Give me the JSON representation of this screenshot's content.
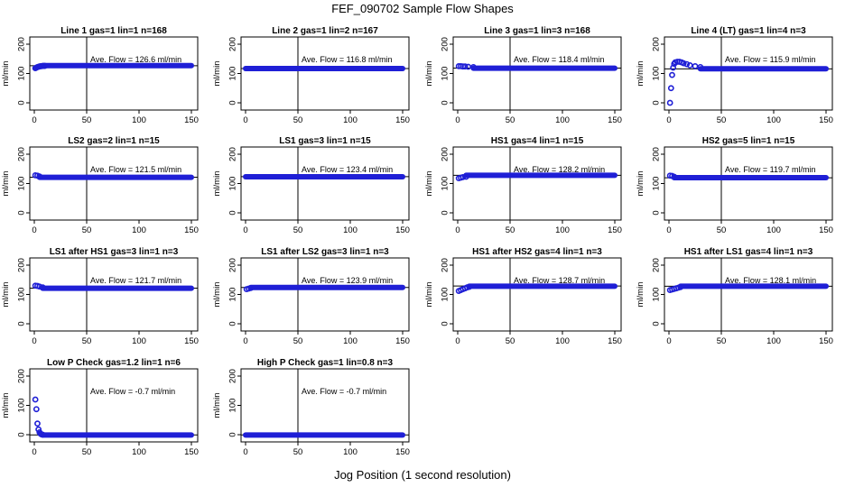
{
  "title": "FEF_090702  Sample Flow Shapes",
  "xlabel": "Jog Position (1 second resolution)",
  "chart_data": [
    {
      "type": "scatter",
      "title": "Line 1 gas=1 lin=1 n=168",
      "ylabel": "ml/min",
      "xlim": [
        0,
        150
      ],
      "ylim": [
        0,
        200
      ],
      "xticks": [
        0,
        50,
        100,
        150
      ],
      "yticks": [
        0,
        100,
        200
      ],
      "vline_x": 50,
      "avg": 126.6,
      "avg_label": "Ave. Flow =  126.6  ml/min",
      "points": [
        [
          1,
          118
        ],
        [
          2,
          120
        ],
        [
          3,
          122
        ],
        [
          4,
          123
        ],
        [
          5,
          124
        ],
        [
          6,
          125
        ],
        [
          7,
          125
        ],
        [
          8,
          126
        ],
        [
          9,
          126
        ],
        [
          10,
          126
        ]
      ],
      "fill_to": 150,
      "fill_y": 127
    },
    {
      "type": "scatter",
      "title": "Line 2 gas=1 lin=2 n=167",
      "ylabel": "ml/min",
      "xlim": [
        0,
        150
      ],
      "ylim": [
        0,
        200
      ],
      "xticks": [
        0,
        50,
        100,
        150
      ],
      "yticks": [
        0,
        100,
        200
      ],
      "vline_x": 50,
      "avg": 116.8,
      "avg_label": "Ave. Flow =  116.8  ml/min",
      "points": [],
      "fill_to": 150,
      "fill_y": 117
    },
    {
      "type": "scatter",
      "title": "Line 3 gas=1 lin=3 n=168",
      "ylabel": "ml/min",
      "xlim": [
        0,
        150
      ],
      "ylim": [
        0,
        200
      ],
      "xticks": [
        0,
        50,
        100,
        150
      ],
      "yticks": [
        0,
        100,
        200
      ],
      "vline_x": 50,
      "avg": 118.4,
      "avg_label": "Ave. Flow =  118.4  ml/min",
      "points": [
        [
          1,
          125
        ],
        [
          3,
          125
        ],
        [
          5,
          124
        ],
        [
          7,
          124
        ],
        [
          10,
          123
        ],
        [
          15,
          122
        ]
      ],
      "fill_to": 150,
      "fill_y": 118
    },
    {
      "type": "scatter",
      "title": "Line 4 (LT) gas=1 lin=4 n=3",
      "ylabel": "ml/min",
      "xlim": [
        0,
        150
      ],
      "ylim": [
        0,
        200
      ],
      "xticks": [
        0,
        50,
        100,
        150
      ],
      "yticks": [
        0,
        100,
        200
      ],
      "vline_x": 50,
      "avg": 115.9,
      "avg_label": "Ave. Flow =  115.9  ml/min",
      "points": [
        [
          1,
          0
        ],
        [
          2,
          50
        ],
        [
          3,
          95
        ],
        [
          4,
          120
        ],
        [
          5,
          133
        ],
        [
          6,
          138
        ],
        [
          8,
          140
        ],
        [
          10,
          140
        ],
        [
          12,
          138
        ],
        [
          14,
          135
        ],
        [
          17,
          132
        ],
        [
          20,
          128
        ],
        [
          25,
          125
        ],
        [
          30,
          122
        ]
      ],
      "fill_to": 150,
      "fill_y": 116
    },
    {
      "type": "scatter",
      "title": "LS2 gas=2 lin=1 n=15",
      "ylabel": "ml/min",
      "xlim": [
        0,
        150
      ],
      "ylim": [
        0,
        200
      ],
      "xticks": [
        0,
        50,
        100,
        150
      ],
      "yticks": [
        0,
        100,
        200
      ],
      "vline_x": 50,
      "avg": 121.5,
      "avg_label": "Ave. Flow =  121.5  ml/min",
      "points": [
        [
          1,
          128
        ],
        [
          3,
          127
        ],
        [
          5,
          124
        ]
      ],
      "fill_to": 150,
      "fill_y": 121
    },
    {
      "type": "scatter",
      "title": "LS1 gas=3 lin=1 n=15",
      "ylabel": "ml/min",
      "xlim": [
        0,
        150
      ],
      "ylim": [
        0,
        200
      ],
      "xticks": [
        0,
        50,
        100,
        150
      ],
      "yticks": [
        0,
        100,
        200
      ],
      "vline_x": 50,
      "avg": 123.4,
      "avg_label": "Ave. Flow =  123.4  ml/min",
      "points": [],
      "fill_to": 150,
      "fill_y": 123
    },
    {
      "type": "scatter",
      "title": "HS1 gas=4 lin=1 n=15",
      "ylabel": "ml/min",
      "xlim": [
        0,
        150
      ],
      "ylim": [
        0,
        200
      ],
      "xticks": [
        0,
        50,
        100,
        150
      ],
      "yticks": [
        0,
        100,
        200
      ],
      "vline_x": 50,
      "avg": 128.2,
      "avg_label": "Ave. Flow =  128.2  ml/min",
      "points": [
        [
          1,
          118
        ],
        [
          3,
          120
        ],
        [
          5,
          122
        ],
        [
          8,
          123
        ]
      ],
      "fill_to": 150,
      "fill_y": 128
    },
    {
      "type": "scatter",
      "title": "HS2 gas=5 lin=1 n=15",
      "ylabel": "ml/min",
      "xlim": [
        0,
        150
      ],
      "ylim": [
        0,
        200
      ],
      "xticks": [
        0,
        50,
        100,
        150
      ],
      "yticks": [
        0,
        100,
        200
      ],
      "vline_x": 50,
      "avg": 119.7,
      "avg_label": "Ave. Flow =  119.7  ml/min",
      "points": [
        [
          1,
          127
        ],
        [
          3,
          126
        ],
        [
          5,
          123
        ]
      ],
      "fill_to": 150,
      "fill_y": 120
    },
    {
      "type": "scatter",
      "title": "LS1 after HS1 gas=3 lin=1 n=3",
      "ylabel": "ml/min",
      "xlim": [
        0,
        150
      ],
      "ylim": [
        0,
        200
      ],
      "xticks": [
        0,
        50,
        100,
        150
      ],
      "yticks": [
        0,
        100,
        200
      ],
      "vline_x": 50,
      "avg": 121.7,
      "avg_label": "Ave. Flow =  121.7  ml/min",
      "points": [
        [
          1,
          130
        ],
        [
          3,
          129
        ],
        [
          5,
          127
        ],
        [
          8,
          124
        ]
      ],
      "fill_to": 150,
      "fill_y": 121
    },
    {
      "type": "scatter",
      "title": "LS1 after LS2 gas=3 lin=1 n=3",
      "ylabel": "ml/min",
      "xlim": [
        0,
        150
      ],
      "ylim": [
        0,
        200
      ],
      "xticks": [
        0,
        50,
        100,
        150
      ],
      "yticks": [
        0,
        100,
        200
      ],
      "vline_x": 50,
      "avg": 123.9,
      "avg_label": "Ave. Flow =  123.9  ml/min",
      "points": [
        [
          1,
          118
        ],
        [
          3,
          120
        ],
        [
          5,
          122
        ]
      ],
      "fill_to": 150,
      "fill_y": 124
    },
    {
      "type": "scatter",
      "title": "HS1 after HS2 gas=4 lin=1 n=3",
      "ylabel": "ml/min",
      "xlim": [
        0,
        150
      ],
      "ylim": [
        0,
        200
      ],
      "xticks": [
        0,
        50,
        100,
        150
      ],
      "yticks": [
        0,
        100,
        200
      ],
      "vline_x": 50,
      "avg": 128.7,
      "avg_label": "Ave. Flow =  128.7  ml/min",
      "points": [
        [
          1,
          112
        ],
        [
          3,
          115
        ],
        [
          5,
          118
        ],
        [
          7,
          121
        ],
        [
          9,
          124
        ],
        [
          11,
          126
        ]
      ],
      "fill_to": 150,
      "fill_y": 128
    },
    {
      "type": "scatter",
      "title": "HS1 after LS1 gas=4 lin=1 n=3",
      "ylabel": "ml/min",
      "xlim": [
        0,
        150
      ],
      "ylim": [
        0,
        200
      ],
      "xticks": [
        0,
        50,
        100,
        150
      ],
      "yticks": [
        0,
        100,
        200
      ],
      "vline_x": 50,
      "avg": 128.1,
      "avg_label": "Ave. Flow =  128.1  ml/min",
      "points": [
        [
          1,
          115
        ],
        [
          3,
          117
        ],
        [
          5,
          119
        ],
        [
          7,
          121
        ],
        [
          9,
          123
        ],
        [
          11,
          125
        ]
      ],
      "fill_to": 150,
      "fill_y": 128
    },
    {
      "type": "scatter",
      "title": "Low P Check gas=1.2 lin=1 n=6",
      "ylabel": "ml/min",
      "xlim": [
        0,
        150
      ],
      "ylim": [
        0,
        200
      ],
      "xticks": [
        0,
        50,
        100,
        150
      ],
      "yticks": [
        0,
        100,
        200
      ],
      "vline_x": 50,
      "avg": -0.7,
      "avg_label": "Ave. Flow =  -0.7  ml/min",
      "points": [
        [
          1,
          120
        ],
        [
          2,
          87
        ],
        [
          3,
          38
        ],
        [
          4,
          18
        ],
        [
          5,
          8
        ],
        [
          6,
          3
        ],
        [
          7,
          1
        ],
        [
          8,
          0
        ]
      ],
      "fill_to": 150,
      "fill_y": -1
    },
    {
      "type": "scatter",
      "title": "High P Check gas=1 lin=0.8 n=3",
      "ylabel": "ml/min",
      "xlim": [
        0,
        150
      ],
      "ylim": [
        0,
        200
      ],
      "xticks": [
        0,
        50,
        100,
        150
      ],
      "yticks": [
        0,
        100,
        200
      ],
      "vline_x": 50,
      "avg": -0.7,
      "avg_label": "Ave. Flow =  -0.7  ml/min",
      "points": [],
      "fill_to": 150,
      "fill_y": -1
    }
  ]
}
